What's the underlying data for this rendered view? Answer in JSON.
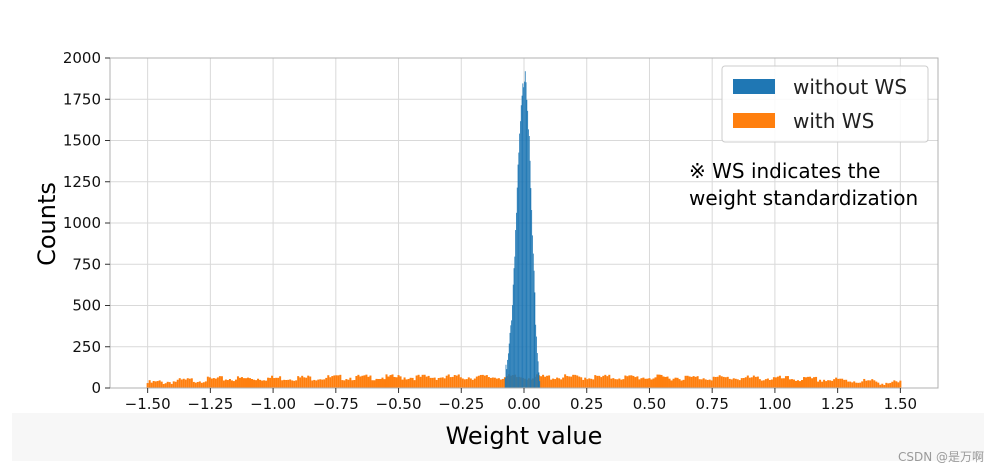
{
  "chart_data": {
    "type": "bar",
    "xlabel": "Weight value",
    "ylabel": "Counts",
    "xlim": [
      -1.65,
      1.65
    ],
    "ylim": [
      0,
      2000
    ],
    "xticks": [
      "−1.50",
      "−1.25",
      "−1.00",
      "−0.75",
      "−0.50",
      "−0.25",
      "0.00",
      "0.25",
      "0.50",
      "0.75",
      "1.00",
      "1.25",
      "1.50"
    ],
    "xtick_values": [
      -1.5,
      -1.25,
      -1.0,
      -0.75,
      -0.5,
      -0.25,
      0.0,
      0.25,
      0.5,
      0.75,
      1.0,
      1.25,
      1.5
    ],
    "yticks": [
      "0",
      "250",
      "500",
      "750",
      "1000",
      "1250",
      "1500",
      "1750",
      "2000"
    ],
    "ytick_values": [
      0,
      250,
      500,
      750,
      1000,
      1250,
      1500,
      1750,
      2000
    ],
    "grid": true,
    "legend_position": "top-right",
    "series": [
      {
        "name": "without WS",
        "color": "#1f77b4",
        "bins": [
          {
            "x": -0.075,
            "y": 60
          },
          {
            "x": -0.065,
            "y": 140
          },
          {
            "x": -0.055,
            "y": 310
          },
          {
            "x": -0.045,
            "y": 560
          },
          {
            "x": -0.035,
            "y": 900
          },
          {
            "x": -0.025,
            "y": 1260
          },
          {
            "x": -0.015,
            "y": 1580
          },
          {
            "x": -0.005,
            "y": 1800
          },
          {
            "x": 0.005,
            "y": 1960
          },
          {
            "x": 0.015,
            "y": 1720
          },
          {
            "x": 0.025,
            "y": 1300
          },
          {
            "x": 0.035,
            "y": 860
          },
          {
            "x": 0.045,
            "y": 460
          },
          {
            "x": 0.055,
            "y": 180
          },
          {
            "x": 0.065,
            "y": 60
          }
        ]
      },
      {
        "name": "with WS",
        "color": "#ff7f0e",
        "bins": [
          {
            "x": -1.5,
            "y": 30
          },
          {
            "x": -1.35,
            "y": 45
          },
          {
            "x": -1.2,
            "y": 55
          },
          {
            "x": -1.0,
            "y": 60
          },
          {
            "x": -0.75,
            "y": 63
          },
          {
            "x": -0.5,
            "y": 65
          },
          {
            "x": -0.25,
            "y": 66
          },
          {
            "x": 0.0,
            "y": 66
          },
          {
            "x": 0.25,
            "y": 65
          },
          {
            "x": 0.5,
            "y": 64
          },
          {
            "x": 0.75,
            "y": 62
          },
          {
            "x": 1.0,
            "y": 58
          },
          {
            "x": 1.2,
            "y": 50
          },
          {
            "x": 1.35,
            "y": 42
          },
          {
            "x": 1.5,
            "y": 28
          }
        ]
      }
    ],
    "annotation": [
      "※ WS indicates the",
      "weight standardization"
    ]
  },
  "watermark": "CSDN @是万啊"
}
